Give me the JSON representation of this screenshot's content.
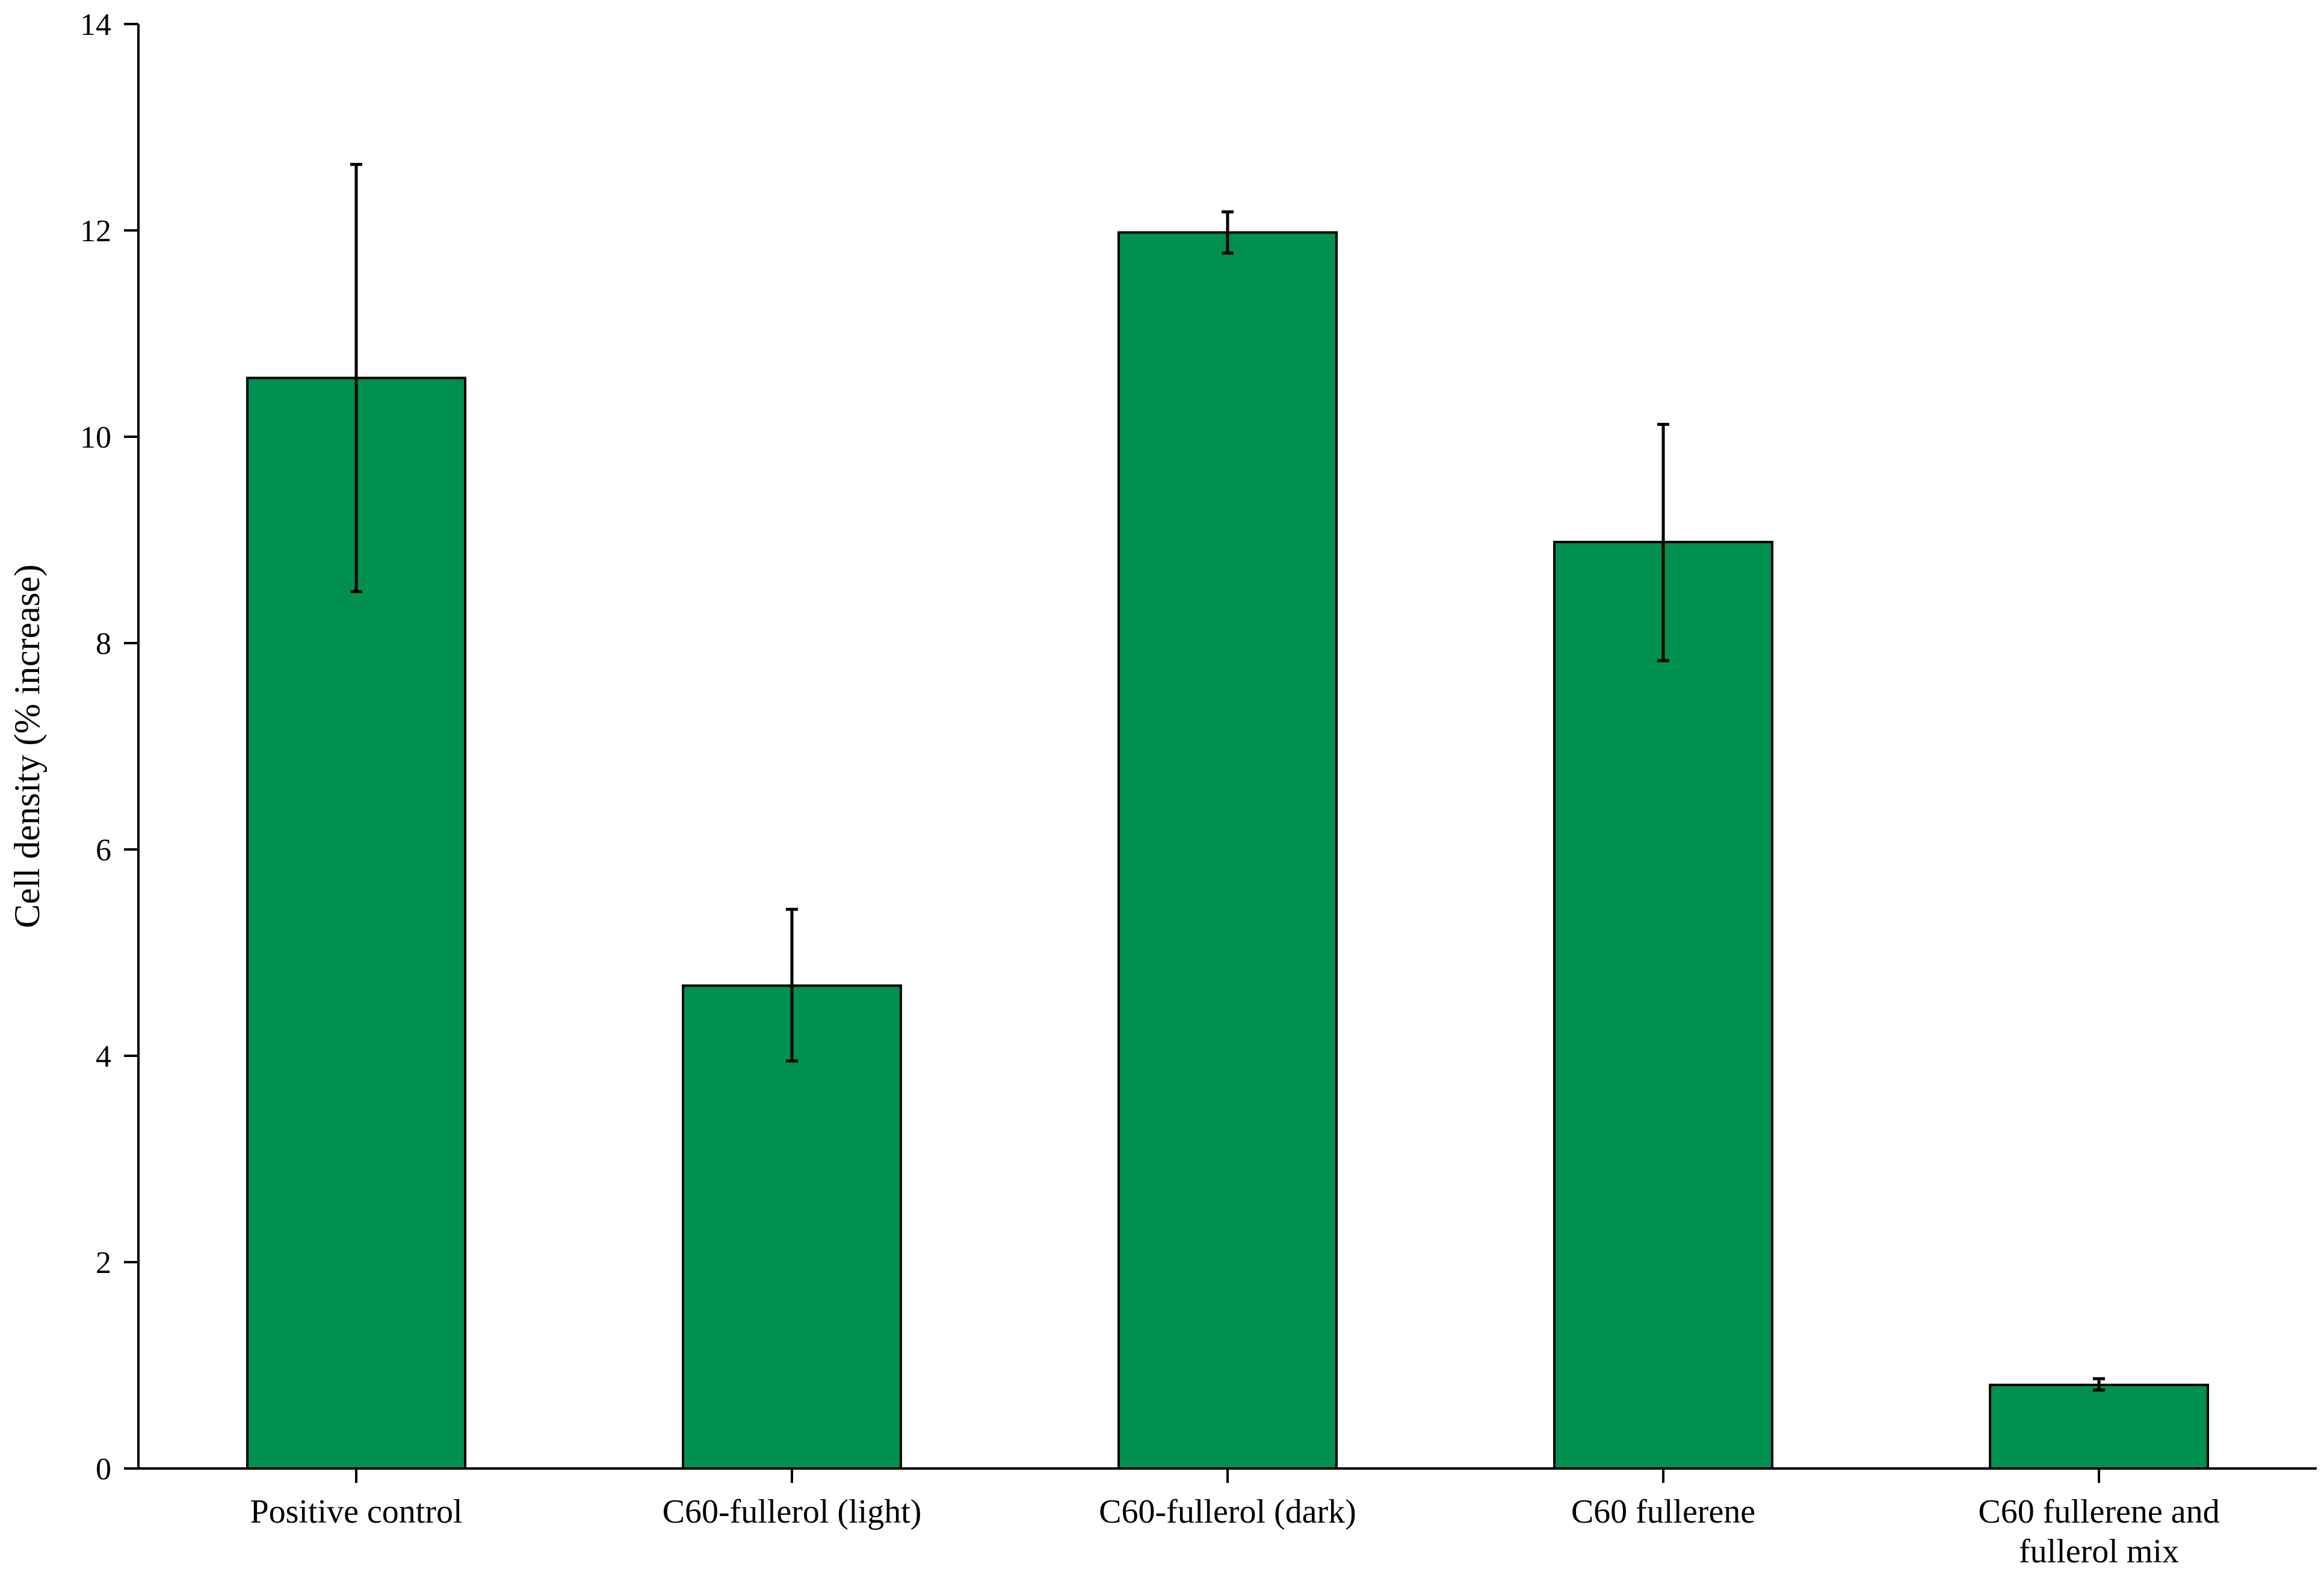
{
  "chart_data": {
    "type": "bar",
    "title": "",
    "xlabel": "",
    "ylabel": "Cell density (% increase)",
    "ylim": [
      0,
      14
    ],
    "yticks": [
      0,
      2,
      4,
      6,
      8,
      10,
      12,
      14
    ],
    "grid": false,
    "legend": "none",
    "bar_color": "#00904F",
    "categories": [
      [
        "Positive control"
      ],
      [
        "C60-fullerol (light)"
      ],
      [
        "C60-fullerol (dark)"
      ],
      [
        "C60 fullerene"
      ],
      [
        "C60 fullerene and",
        "fullerol mix"
      ]
    ],
    "values": [
      10.57,
      4.68,
      11.98,
      8.98,
      0.81
    ],
    "error_low": [
      8.5,
      3.95,
      11.78,
      7.83,
      0.76
    ],
    "error_high": [
      12.64,
      5.42,
      12.18,
      10.12,
      0.87
    ]
  }
}
